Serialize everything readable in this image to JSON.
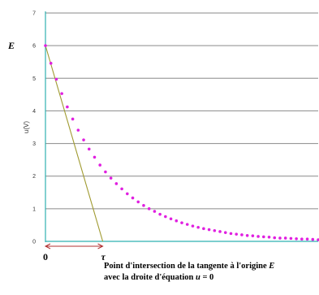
{
  "chart_data": {
    "type": "scatter",
    "ylabel": "u(V)",
    "y_ticks": [
      "0",
      "1",
      "2",
      "3",
      "4",
      "5",
      "6",
      "7"
    ],
    "ylim": [
      0,
      7
    ],
    "grid": true,
    "E_label": "E",
    "tau_label": "τ",
    "origin_label": "0",
    "series": [
      {
        "curve": "discharge",
        "color": "#e020e0",
        "x": [
          0,
          0.2,
          0.4,
          0.6,
          0.8,
          1,
          1.2,
          1.4,
          1.6,
          1.8,
          2,
          2.2,
          2.4,
          2.6,
          2.8,
          3,
          3.2,
          3.4,
          3.6,
          3.8,
          4,
          4.2,
          4.4,
          4.6,
          4.8,
          5,
          5.2,
          5.4,
          5.6,
          5.8,
          6,
          6.2,
          6.4,
          6.6,
          6.8,
          7,
          7.2,
          7.4,
          7.6,
          7.8,
          8,
          8.2,
          8.4,
          8.6,
          8.8,
          9,
          9.2,
          9.4,
          9.6,
          9.8,
          10
        ],
        "y": [
          6,
          5.46,
          4.97,
          4.53,
          4.12,
          3.75,
          3.41,
          3.11,
          2.83,
          2.58,
          2.34,
          2.13,
          1.94,
          1.77,
          1.61,
          1.46,
          1.33,
          1.21,
          1.1,
          1.0,
          0.92,
          0.83,
          0.76,
          0.69,
          0.63,
          0.57,
          0.52,
          0.47,
          0.43,
          0.39,
          0.36,
          0.33,
          0.3,
          0.27,
          0.24,
          0.22,
          0.2,
          0.18,
          0.17,
          0.15,
          0.14,
          0.13,
          0.11,
          0.1,
          0.1,
          0.09,
          0.08,
          0.07,
          0.07,
          0.06,
          0.05
        ]
      },
      {
        "curve": "tangent at origin",
        "color": "#a09a30",
        "x": [
          0,
          2.1
        ],
        "y": [
          6,
          0
        ]
      }
    ],
    "tau_marker": {
      "x": [
        0,
        2.1
      ],
      "color": "#b03030"
    }
  },
  "caption": {
    "line1_text": "Point d'intersection de la tangente à l'origine ",
    "line1_var": "E",
    "line2_text": "avec la droite d'équation  ",
    "line2_var": "u",
    "line2_suffix": " = 0"
  }
}
